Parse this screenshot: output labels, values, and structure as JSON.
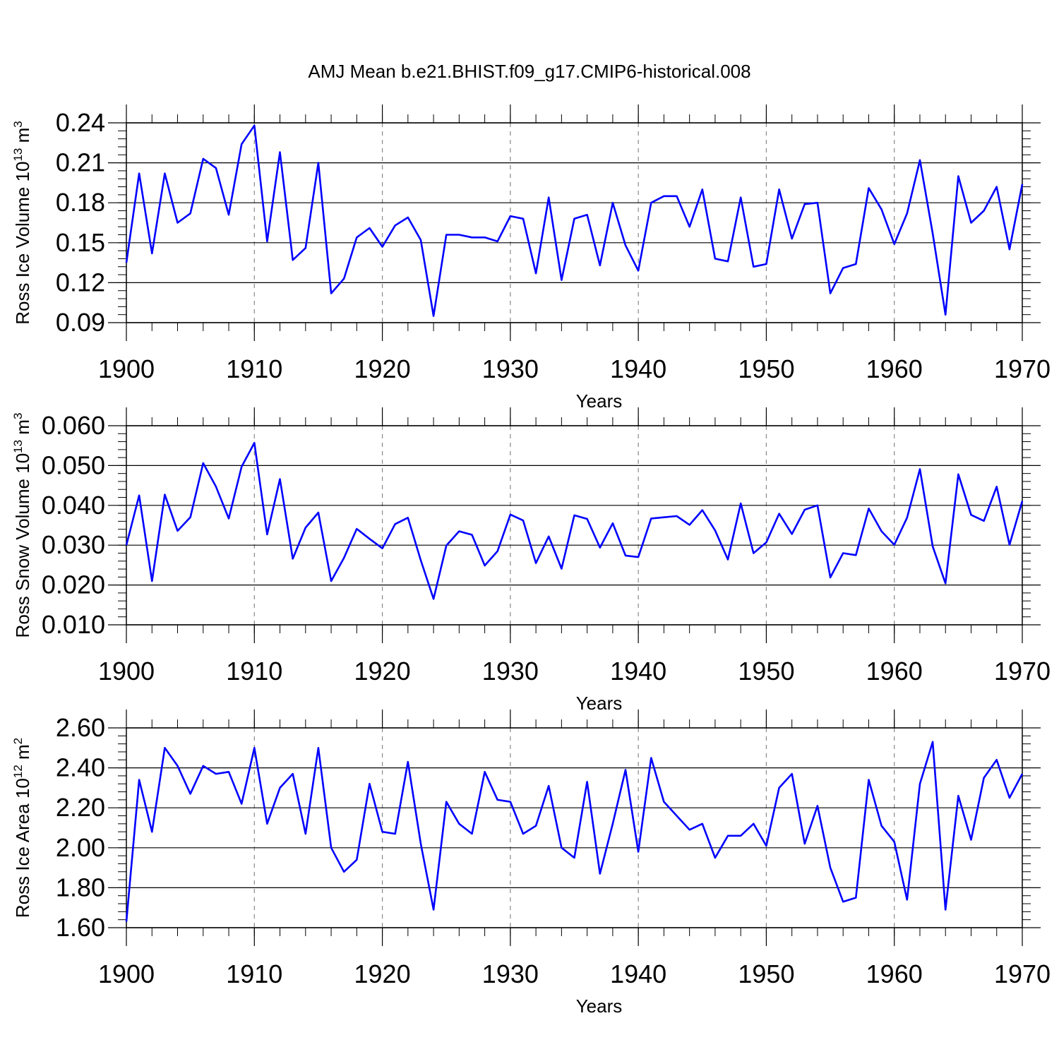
{
  "title": "AMJ Mean b.e21.BHIST.f09_g17.CMIP6-historical.008",
  "line_color": "#0000ff",
  "chart_data": [
    {
      "type": "line",
      "title": "AMJ Mean b.e21.BHIST.f09_g17.CMIP6-historical.008",
      "xlabel": "Years",
      "ylabel_main": "Ross Ice Volume 10",
      "ylabel_exp": "13",
      "ylabel_unit": " m",
      "ylabel_unit_exp": "3",
      "xlim": [
        1900,
        1970
      ],
      "ylim": [
        0.09,
        0.24
      ],
      "x_ticks": [
        1900,
        1910,
        1920,
        1930,
        1940,
        1950,
        1960,
        1970
      ],
      "y_ticks": [
        0.09,
        0.12,
        0.15,
        0.18,
        0.21,
        0.24
      ],
      "y_tick_labels": [
        "0.09",
        "0.12",
        "0.15",
        "0.18",
        "0.21",
        "0.24"
      ],
      "x_tick_labels": [
        "1900",
        "1910",
        "1920",
        "1930",
        "1940",
        "1950",
        "1960",
        "1970"
      ],
      "grid": "vertical dashed",
      "x": [
        1900,
        1901,
        1902,
        1903,
        1904,
        1905,
        1906,
        1907,
        1908,
        1909,
        1910,
        1911,
        1912,
        1913,
        1914,
        1915,
        1916,
        1917,
        1918,
        1919,
        1920,
        1921,
        1922,
        1923,
        1924,
        1925,
        1926,
        1927,
        1928,
        1929,
        1930,
        1931,
        1932,
        1933,
        1934,
        1935,
        1936,
        1937,
        1938,
        1939,
        1940,
        1941,
        1942,
        1943,
        1944,
        1945,
        1946,
        1947,
        1948,
        1949,
        1950,
        1951,
        1952,
        1953,
        1954,
        1955,
        1956,
        1957,
        1958,
        1959,
        1960,
        1961,
        1962,
        1963,
        1964,
        1965,
        1966,
        1967,
        1968,
        1969,
        1970
      ],
      "values": [
        0.135,
        0.202,
        0.142,
        0.202,
        0.165,
        0.172,
        0.213,
        0.206,
        0.171,
        0.224,
        0.238,
        0.151,
        0.218,
        0.137,
        0.146,
        0.21,
        0.112,
        0.123,
        0.154,
        0.161,
        0.147,
        0.163,
        0.169,
        0.152,
        0.095,
        0.156,
        0.156,
        0.154,
        0.154,
        0.151,
        0.17,
        0.168,
        0.127,
        0.184,
        0.122,
        0.168,
        0.171,
        0.133,
        0.18,
        0.148,
        0.129,
        0.18,
        0.185,
        0.185,
        0.162,
        0.19,
        0.138,
        0.136,
        0.184,
        0.132,
        0.134,
        0.19,
        0.153,
        0.179,
        0.18,
        0.112,
        0.131,
        0.134,
        0.191,
        0.175,
        0.149,
        0.172,
        0.212,
        0.157,
        0.096,
        0.2,
        0.165,
        0.174,
        0.192,
        0.145,
        0.194
      ]
    },
    {
      "type": "line",
      "xlabel": "Years",
      "ylabel_main": "Ross Snow Volume 10",
      "ylabel_exp": "13",
      "ylabel_unit": " m",
      "ylabel_unit_exp": "3",
      "xlim": [
        1900,
        1970
      ],
      "ylim": [
        0.01,
        0.06
      ],
      "x_ticks": [
        1900,
        1910,
        1920,
        1930,
        1940,
        1950,
        1960,
        1970
      ],
      "y_ticks": [
        0.01,
        0.02,
        0.03,
        0.04,
        0.05,
        0.06
      ],
      "y_tick_labels": [
        "0.010",
        "0.020",
        "0.030",
        "0.040",
        "0.050",
        "0.060"
      ],
      "x_tick_labels": [
        "1900",
        "1910",
        "1920",
        "1930",
        "1940",
        "1950",
        "1960",
        "1970"
      ],
      "grid": "vertical dashed",
      "x": [
        1900,
        1901,
        1902,
        1903,
        1904,
        1905,
        1906,
        1907,
        1908,
        1909,
        1910,
        1911,
        1912,
        1913,
        1914,
        1915,
        1916,
        1917,
        1918,
        1919,
        1920,
        1921,
        1922,
        1923,
        1924,
        1925,
        1926,
        1927,
        1928,
        1929,
        1930,
        1931,
        1932,
        1933,
        1934,
        1935,
        1936,
        1937,
        1938,
        1939,
        1940,
        1941,
        1942,
        1943,
        1944,
        1945,
        1946,
        1947,
        1948,
        1949,
        1950,
        1951,
        1952,
        1953,
        1954,
        1955,
        1956,
        1957,
        1958,
        1959,
        1960,
        1961,
        1962,
        1963,
        1964,
        1965,
        1966,
        1967,
        1968,
        1969,
        1970
      ],
      "values": [
        0.03,
        0.0425,
        0.021,
        0.0427,
        0.0336,
        0.037,
        0.0506,
        0.0447,
        0.0367,
        0.0497,
        0.0557,
        0.0327,
        0.0466,
        0.0266,
        0.0344,
        0.0382,
        0.021,
        0.0268,
        0.0341,
        0.0316,
        0.0292,
        0.0353,
        0.0369,
        0.0262,
        0.0165,
        0.0299,
        0.0335,
        0.0326,
        0.0249,
        0.0285,
        0.0377,
        0.0362,
        0.0255,
        0.0322,
        0.0241,
        0.0375,
        0.0366,
        0.0294,
        0.0355,
        0.0274,
        0.027,
        0.0367,
        0.037,
        0.0373,
        0.0351,
        0.0388,
        0.0337,
        0.0264,
        0.0405,
        0.028,
        0.0307,
        0.0379,
        0.0328,
        0.0389,
        0.04,
        0.0219,
        0.028,
        0.0275,
        0.0392,
        0.0335,
        0.0301,
        0.0369,
        0.0491,
        0.0297,
        0.0204,
        0.0478,
        0.0376,
        0.0361,
        0.0447,
        0.0301,
        0.0411
      ]
    },
    {
      "type": "line",
      "xlabel": "Years",
      "ylabel_main": "Ross Ice Area 10",
      "ylabel_exp": "12",
      "ylabel_unit": " m",
      "ylabel_unit_exp": "2",
      "xlim": [
        1900,
        1970
      ],
      "ylim": [
        1.6,
        2.6
      ],
      "x_ticks": [
        1900,
        1910,
        1920,
        1930,
        1940,
        1950,
        1960,
        1970
      ],
      "y_ticks": [
        1.6,
        1.8,
        2.0,
        2.2,
        2.4,
        2.6
      ],
      "y_tick_labels": [
        "1.60",
        "1.80",
        "2.00",
        "2.20",
        "2.40",
        "2.60"
      ],
      "x_tick_labels": [
        "1900",
        "1910",
        "1920",
        "1930",
        "1940",
        "1950",
        "1960",
        "1970"
      ],
      "grid": "vertical dashed",
      "x": [
        1900,
        1901,
        1902,
        1903,
        1904,
        1905,
        1906,
        1907,
        1908,
        1909,
        1910,
        1911,
        1912,
        1913,
        1914,
        1915,
        1916,
        1917,
        1918,
        1919,
        1920,
        1921,
        1922,
        1923,
        1924,
        1925,
        1926,
        1927,
        1928,
        1929,
        1930,
        1931,
        1932,
        1933,
        1934,
        1935,
        1936,
        1937,
        1938,
        1939,
        1940,
        1941,
        1942,
        1943,
        1944,
        1945,
        1946,
        1947,
        1948,
        1949,
        1950,
        1951,
        1952,
        1953,
        1954,
        1955,
        1956,
        1957,
        1958,
        1959,
        1960,
        1961,
        1962,
        1963,
        1964,
        1965,
        1966,
        1967,
        1968,
        1969,
        1970
      ],
      "values": [
        1.63,
        2.34,
        2.08,
        2.5,
        2.41,
        2.27,
        2.41,
        2.37,
        2.38,
        2.22,
        2.5,
        2.12,
        2.3,
        2.37,
        2.07,
        2.5,
        2.0,
        1.88,
        1.94,
        2.32,
        2.08,
        2.07,
        2.43,
        2.02,
        1.69,
        2.23,
        2.12,
        2.07,
        2.38,
        2.24,
        2.23,
        2.07,
        2.11,
        2.31,
        2.0,
        1.95,
        2.33,
        1.87,
        2.12,
        2.39,
        1.98,
        2.45,
        2.23,
        2.16,
        2.09,
        2.12,
        1.95,
        2.06,
        2.06,
        2.12,
        2.01,
        2.3,
        2.37,
        2.02,
        2.21,
        1.9,
        1.73,
        1.75,
        2.34,
        2.11,
        2.03,
        1.74,
        2.32,
        2.53,
        1.69,
        2.26,
        2.04,
        2.35,
        2.44,
        2.25,
        2.37
      ]
    }
  ]
}
